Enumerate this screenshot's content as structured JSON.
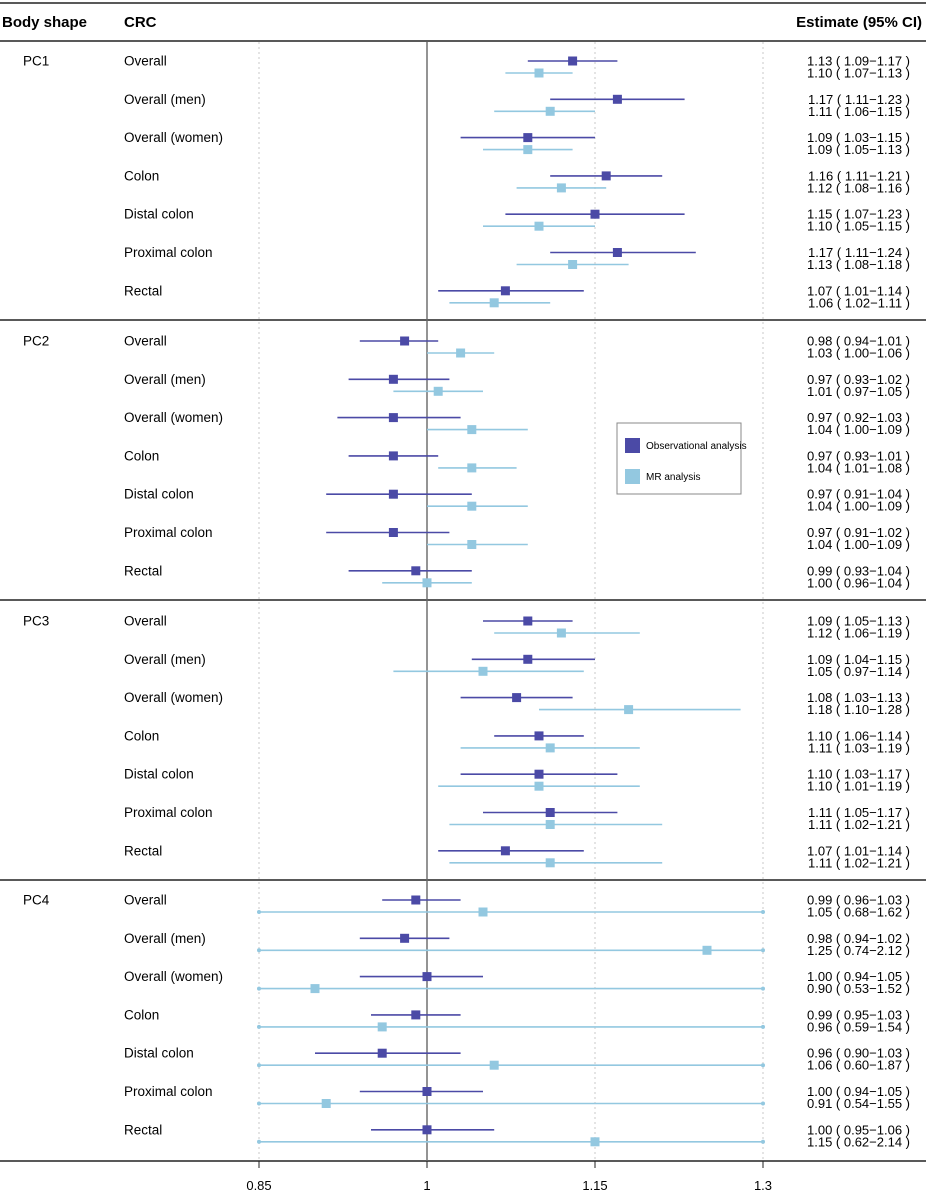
{
  "chart_data": {
    "type": "forest",
    "headers": {
      "col1": "Body shape",
      "col2": "CRC",
      "col3": "Estimate (95% CI)"
    },
    "xlim": [
      0.85,
      1.3
    ],
    "x_ticks": [
      "0.85",
      "1",
      "1.15",
      "1.3"
    ],
    "reference_line": 1,
    "legend": [
      {
        "name": "Observational analysis",
        "color": "#4b4aa6"
      },
      {
        "name": "MR analysis",
        "color": "#93c8e0"
      }
    ],
    "groups": [
      {
        "name": "PC1",
        "rows": [
          {
            "label": "Overall",
            "obs": {
              "est": 1.13,
              "lo": 1.09,
              "hi": 1.17,
              "text": "1.13 ( 1.09−1.17 )"
            },
            "mr": {
              "est": 1.1,
              "lo": 1.07,
              "hi": 1.13,
              "text": "1.10 ( 1.07−1.13 )"
            }
          },
          {
            "label": "Overall (men)",
            "obs": {
              "est": 1.17,
              "lo": 1.11,
              "hi": 1.23,
              "text": "1.17 ( 1.11−1.23 )"
            },
            "mr": {
              "est": 1.11,
              "lo": 1.06,
              "hi": 1.15,
              "text": "1.11 ( 1.06−1.15 )"
            }
          },
          {
            "label": "Overall (women)",
            "obs": {
              "est": 1.09,
              "lo": 1.03,
              "hi": 1.15,
              "text": "1.09 ( 1.03−1.15 )"
            },
            "mr": {
              "est": 1.09,
              "lo": 1.05,
              "hi": 1.13,
              "text": "1.09 ( 1.05−1.13 )"
            }
          },
          {
            "label": "Colon",
            "obs": {
              "est": 1.16,
              "lo": 1.11,
              "hi": 1.21,
              "text": "1.16 ( 1.11−1.21 )"
            },
            "mr": {
              "est": 1.12,
              "lo": 1.08,
              "hi": 1.16,
              "text": "1.12 ( 1.08−1.16 )"
            }
          },
          {
            "label": "Distal colon",
            "obs": {
              "est": 1.15,
              "lo": 1.07,
              "hi": 1.23,
              "text": "1.15 ( 1.07−1.23 )"
            },
            "mr": {
              "est": 1.1,
              "lo": 1.05,
              "hi": 1.15,
              "text": "1.10 ( 1.05−1.15 )"
            }
          },
          {
            "label": "Proximal colon",
            "obs": {
              "est": 1.17,
              "lo": 1.11,
              "hi": 1.24,
              "text": "1.17 ( 1.11−1.24 )"
            },
            "mr": {
              "est": 1.13,
              "lo": 1.08,
              "hi": 1.18,
              "text": "1.13 ( 1.08−1.18 )"
            }
          },
          {
            "label": "Rectal",
            "obs": {
              "est": 1.07,
              "lo": 1.01,
              "hi": 1.14,
              "text": "1.07 ( 1.01−1.14 )"
            },
            "mr": {
              "est": 1.06,
              "lo": 1.02,
              "hi": 1.11,
              "text": "1.06 ( 1.02−1.11 )"
            }
          }
        ]
      },
      {
        "name": "PC2",
        "rows": [
          {
            "label": "Overall",
            "obs": {
              "est": 0.98,
              "lo": 0.94,
              "hi": 1.01,
              "text": "0.98 ( 0.94−1.01 )"
            },
            "mr": {
              "est": 1.03,
              "lo": 1.0,
              "hi": 1.06,
              "text": "1.03 ( 1.00−1.06 )"
            }
          },
          {
            "label": "Overall (men)",
            "obs": {
              "est": 0.97,
              "lo": 0.93,
              "hi": 1.02,
              "text": "0.97 ( 0.93−1.02 )"
            },
            "mr": {
              "est": 1.01,
              "lo": 0.97,
              "hi": 1.05,
              "text": "1.01 ( 0.97−1.05 )"
            }
          },
          {
            "label": "Overall (women)",
            "obs": {
              "est": 0.97,
              "lo": 0.92,
              "hi": 1.03,
              "text": "0.97 ( 0.92−1.03 )"
            },
            "mr": {
              "est": 1.04,
              "lo": 1.0,
              "hi": 1.09,
              "text": "1.04 ( 1.00−1.09 )"
            }
          },
          {
            "label": "Colon",
            "obs": {
              "est": 0.97,
              "lo": 0.93,
              "hi": 1.01,
              "text": "0.97 ( 0.93−1.01 )"
            },
            "mr": {
              "est": 1.04,
              "lo": 1.01,
              "hi": 1.08,
              "text": "1.04 ( 1.01−1.08 )"
            }
          },
          {
            "label": "Distal colon",
            "obs": {
              "est": 0.97,
              "lo": 0.91,
              "hi": 1.04,
              "text": "0.97 ( 0.91−1.04 )"
            },
            "mr": {
              "est": 1.04,
              "lo": 1.0,
              "hi": 1.09,
              "text": "1.04 ( 1.00−1.09 )"
            }
          },
          {
            "label": "Proximal colon",
            "obs": {
              "est": 0.97,
              "lo": 0.91,
              "hi": 1.02,
              "text": "0.97 ( 0.91−1.02 )"
            },
            "mr": {
              "est": 1.04,
              "lo": 1.0,
              "hi": 1.09,
              "text": "1.04 ( 1.00−1.09 )"
            }
          },
          {
            "label": "Rectal",
            "obs": {
              "est": 0.99,
              "lo": 0.93,
              "hi": 1.04,
              "text": "0.99 ( 0.93−1.04 )"
            },
            "mr": {
              "est": 1.0,
              "lo": 0.96,
              "hi": 1.04,
              "text": "1.00 ( 0.96−1.04 )"
            }
          }
        ]
      },
      {
        "name": "PC3",
        "rows": [
          {
            "label": "Overall",
            "obs": {
              "est": 1.09,
              "lo": 1.05,
              "hi": 1.13,
              "text": "1.09 ( 1.05−1.13 )"
            },
            "mr": {
              "est": 1.12,
              "lo": 1.06,
              "hi": 1.19,
              "text": "1.12 ( 1.06−1.19 )"
            }
          },
          {
            "label": "Overall (men)",
            "obs": {
              "est": 1.09,
              "lo": 1.04,
              "hi": 1.15,
              "text": "1.09 ( 1.04−1.15 )"
            },
            "mr": {
              "est": 1.05,
              "lo": 0.97,
              "hi": 1.14,
              "text": "1.05 ( 0.97−1.14 )"
            }
          },
          {
            "label": "Overall (women)",
            "obs": {
              "est": 1.08,
              "lo": 1.03,
              "hi": 1.13,
              "text": "1.08 ( 1.03−1.13 )"
            },
            "mr": {
              "est": 1.18,
              "lo": 1.1,
              "hi": 1.28,
              "text": "1.18 ( 1.10−1.28 )"
            }
          },
          {
            "label": "Colon",
            "obs": {
              "est": 1.1,
              "lo": 1.06,
              "hi": 1.14,
              "text": "1.10 ( 1.06−1.14 )"
            },
            "mr": {
              "est": 1.11,
              "lo": 1.03,
              "hi": 1.19,
              "text": "1.11 ( 1.03−1.19 )"
            }
          },
          {
            "label": "Distal colon",
            "obs": {
              "est": 1.1,
              "lo": 1.03,
              "hi": 1.17,
              "text": "1.10 ( 1.03−1.17 )"
            },
            "mr": {
              "est": 1.1,
              "lo": 1.01,
              "hi": 1.19,
              "text": "1.10 ( 1.01−1.19 )"
            }
          },
          {
            "label": "Proximal colon",
            "obs": {
              "est": 1.11,
              "lo": 1.05,
              "hi": 1.17,
              "text": "1.11 ( 1.05−1.17 )"
            },
            "mr": {
              "est": 1.11,
              "lo": 1.02,
              "hi": 1.21,
              "text": "1.11 ( 1.02−1.21 )"
            }
          },
          {
            "label": "Rectal",
            "obs": {
              "est": 1.07,
              "lo": 1.01,
              "hi": 1.14,
              "text": "1.07 ( 1.01−1.14 )"
            },
            "mr": {
              "est": 1.11,
              "lo": 1.02,
              "hi": 1.21,
              "text": "1.11 ( 1.02−1.21 )"
            }
          }
        ]
      },
      {
        "name": "PC4",
        "rows": [
          {
            "label": "Overall",
            "obs": {
              "est": 0.99,
              "lo": 0.96,
              "hi": 1.03,
              "text": "0.99 ( 0.96−1.03 )"
            },
            "mr": {
              "est": 1.05,
              "lo": 0.68,
              "hi": 1.62,
              "text": "1.05 ( 0.68−1.62 )"
            }
          },
          {
            "label": "Overall (men)",
            "obs": {
              "est": 0.98,
              "lo": 0.94,
              "hi": 1.02,
              "text": "0.98 ( 0.94−1.02 )"
            },
            "mr": {
              "est": 1.25,
              "lo": 0.74,
              "hi": 2.12,
              "text": "1.25 ( 0.74−2.12 )"
            }
          },
          {
            "label": "Overall (women)",
            "obs": {
              "est": 1.0,
              "lo": 0.94,
              "hi": 1.05,
              "text": "1.00 ( 0.94−1.05 )"
            },
            "mr": {
              "est": 0.9,
              "lo": 0.53,
              "hi": 1.52,
              "text": "0.90 ( 0.53−1.52 )"
            }
          },
          {
            "label": "Colon",
            "obs": {
              "est": 0.99,
              "lo": 0.95,
              "hi": 1.03,
              "text": "0.99 ( 0.95−1.03 )"
            },
            "mr": {
              "est": 0.96,
              "lo": 0.59,
              "hi": 1.54,
              "text": "0.96 ( 0.59−1.54 )"
            }
          },
          {
            "label": "Distal colon",
            "obs": {
              "est": 0.96,
              "lo": 0.9,
              "hi": 1.03,
              "text": "0.96 ( 0.90−1.03 )"
            },
            "mr": {
              "est": 1.06,
              "lo": 0.6,
              "hi": 1.87,
              "text": "1.06 ( 0.60−1.87 )"
            }
          },
          {
            "label": "Proximal colon",
            "obs": {
              "est": 1.0,
              "lo": 0.94,
              "hi": 1.05,
              "text": "1.00 ( 0.94−1.05 )"
            },
            "mr": {
              "est": 0.91,
              "lo": 0.54,
              "hi": 1.55,
              "text": "0.91 ( 0.54−1.55 )"
            }
          },
          {
            "label": "Rectal",
            "obs": {
              "est": 1.0,
              "lo": 0.95,
              "hi": 1.06,
              "text": "1.00 ( 0.95−1.06 )"
            },
            "mr": {
              "est": 1.15,
              "lo": 0.62,
              "hi": 2.14,
              "text": "1.15 ( 0.62−2.14 )"
            }
          }
        ]
      }
    ]
  }
}
